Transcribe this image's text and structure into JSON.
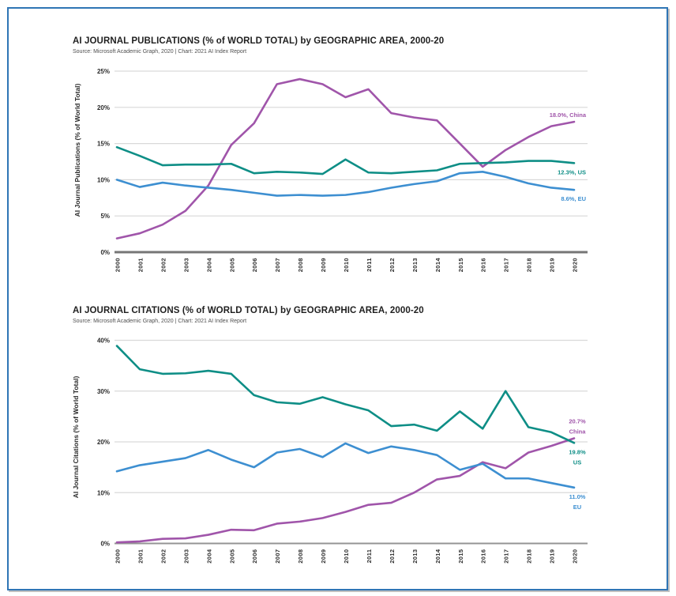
{
  "page": {
    "background_color": "#ffffff",
    "border_color": "#2f75b5"
  },
  "chart_data": [
    {
      "id": "publications",
      "type": "line",
      "title": "AI JOURNAL PUBLICATIONS (% of WORLD TOTAL) by GEOGRAPHIC AREA, 2000-20",
      "source": "Source: Microsoft Academic Graph, 2020 | Chart: 2021 AI Index Report",
      "ylabel": "AI Journal Publications (% of World Total)",
      "xlabel": "",
      "x": [
        "2000",
        "2001",
        "2002",
        "2003",
        "2004",
        "2005",
        "2006",
        "2007",
        "2008",
        "2009",
        "2010",
        "2011",
        "2012",
        "2013",
        "2014",
        "2015",
        "2016",
        "2017",
        "2018",
        "2019",
        "2020"
      ],
      "ylim": [
        0,
        25
      ],
      "yticks": [
        0,
        5,
        10,
        15,
        20,
        25
      ],
      "ytick_suffix": "%",
      "grid": true,
      "legend_position": "end-of-line-labels",
      "grid_color": "#d9d9d9",
      "series": [
        {
          "name": "China",
          "color": "#a055aa",
          "values": [
            1.9,
            2.6,
            3.8,
            5.7,
            9.2,
            14.8,
            17.8,
            23.2,
            23.9,
            23.2,
            21.4,
            22.5,
            19.2,
            18.6,
            18.2,
            15.0,
            11.8,
            14.1,
            15.9,
            17.4,
            18.0
          ],
          "end_label": {
            "lines": [
              "18.0%, China"
            ],
            "side": "above"
          }
        },
        {
          "name": "US",
          "color": "#0e8e86",
          "values": [
            14.5,
            13.3,
            12.0,
            12.1,
            12.1,
            12.2,
            10.9,
            11.1,
            11.0,
            10.8,
            12.8,
            11.0,
            10.9,
            11.1,
            11.3,
            12.2,
            12.3,
            12.4,
            12.6,
            12.6,
            12.3
          ],
          "end_label": {
            "lines": [
              "12.3%, US"
            ],
            "side": "below"
          }
        },
        {
          "name": "EU",
          "color": "#3d8fd1",
          "values": [
            10.0,
            9.0,
            9.6,
            9.2,
            8.9,
            8.6,
            8.2,
            7.8,
            7.9,
            7.8,
            7.9,
            8.3,
            8.9,
            9.4,
            9.8,
            10.9,
            11.1,
            10.4,
            9.5,
            8.9,
            8.6
          ],
          "end_label": {
            "lines": [
              "8.6%, EU"
            ],
            "side": "below"
          }
        }
      ]
    },
    {
      "id": "citations",
      "type": "line",
      "title": "AI JOURNAL CITATIONS (% of WORLD TOTAL) by GEOGRAPHIC AREA, 2000-20",
      "source": "Source: Microsoft Academic Graph, 2020 | Chart: 2021 AI Index Report",
      "ylabel": "AI Journal Citations (% of World Total)",
      "xlabel": "",
      "x": [
        "2000",
        "2001",
        "2002",
        "2003",
        "2004",
        "2005",
        "2006",
        "2007",
        "2008",
        "2009",
        "2010",
        "2011",
        "2012",
        "2013",
        "2014",
        "2015",
        "2016",
        "2017",
        "2018",
        "2019",
        "2020"
      ],
      "ylim": [
        0,
        40
      ],
      "yticks": [
        0,
        10,
        20,
        30,
        40
      ],
      "ytick_suffix": "%",
      "grid": true,
      "legend_position": "end-of-line-labels",
      "grid_color": "#d9d9d9",
      "series": [
        {
          "name": "China",
          "color": "#a055aa",
          "values": [
            0.2,
            0.4,
            0.9,
            1.0,
            1.7,
            2.7,
            2.6,
            3.9,
            4.3,
            5.0,
            6.2,
            7.6,
            8.0,
            10.0,
            12.6,
            13.3,
            16.0,
            14.8,
            17.9,
            19.2,
            20.7
          ],
          "end_label": {
            "lines": [
              "20.7%",
              "China"
            ],
            "side": "above"
          }
        },
        {
          "name": "US",
          "color": "#0e8e86",
          "values": [
            38.9,
            34.3,
            33.4,
            33.5,
            34.0,
            33.4,
            29.2,
            27.8,
            27.5,
            28.8,
            27.4,
            26.2,
            23.1,
            23.4,
            22.2,
            26.0,
            22.6,
            30.0,
            22.9,
            21.9,
            19.8
          ],
          "end_label": {
            "lines": [
              "19.8%",
              "US"
            ],
            "side": "below"
          }
        },
        {
          "name": "EU",
          "color": "#3d8fd1",
          "values": [
            14.2,
            15.4,
            16.1,
            16.8,
            18.4,
            16.5,
            15.0,
            17.9,
            18.6,
            17.0,
            19.7,
            17.8,
            19.1,
            18.4,
            17.4,
            14.5,
            15.7,
            12.8,
            12.8,
            11.9,
            11.0
          ],
          "end_label": {
            "lines": [
              "11.0%",
              "EU"
            ],
            "side": "below"
          }
        }
      ]
    }
  ]
}
